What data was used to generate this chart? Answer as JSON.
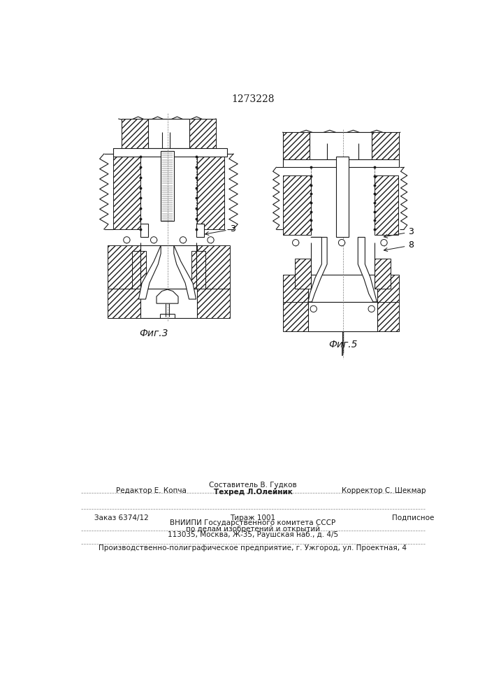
{
  "title": "1273228",
  "fig3_label": "Фиг.3",
  "fig5_label": "Фиг.5",
  "label_3": "3",
  "label_8": "8",
  "footer_line1_left": "Редактор Е. Копча",
  "footer_line1_center": "Составитель В. Гудков",
  "footer_line2_center": "Техред Л.Олейник",
  "footer_line1_right": "Корректор С. Шекмар",
  "footer_order": "Заказ 6374/12",
  "footer_tiraz": "Тираж 1001",
  "footer_podp": "Подписное",
  "footer_vniip": "ВНИИПИ Государственного комитета СССР",
  "footer_po": "по делам изобретений и открытий",
  "footer_addr": "113035, Москва, Ж-35, Раушская наб., д. 4/5",
  "footer_prod": "Производственно-полиграфическое предприятие, г. Ужгород, ул. Проектная, 4",
  "bg_color": "#ffffff",
  "line_color": "#1a1a1a"
}
